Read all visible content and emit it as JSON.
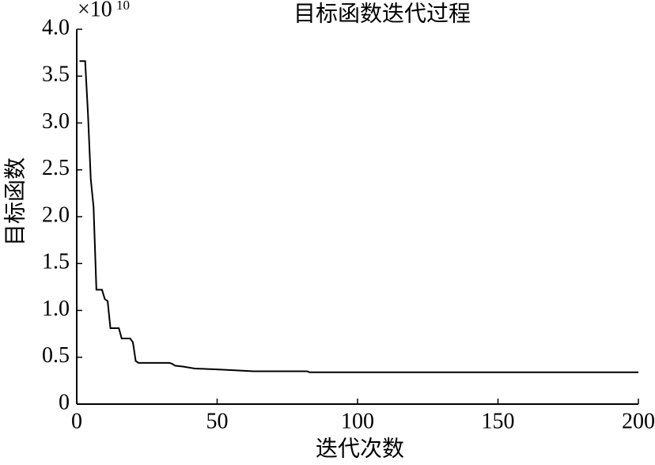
{
  "chart_data": {
    "type": "line",
    "title": "目标函数迭代过程",
    "x_label": "迭代次数",
    "y_label": "目标函数",
    "y_multiplier": "×10",
    "y_multiplier_exponent": "10",
    "x": [
      1,
      3,
      4,
      5,
      6,
      7,
      9,
      10,
      11,
      12,
      15,
      16,
      19,
      20,
      21,
      22,
      33,
      34,
      35,
      38,
      42,
      50,
      57,
      63,
      82,
      83,
      200
    ],
    "series": [
      {
        "color": "#000000",
        "values": [
          3.66,
          3.66,
          3.1,
          2.4,
          2.1,
          1.22,
          1.22,
          1.12,
          1.1,
          0.81,
          0.81,
          0.7,
          0.7,
          0.66,
          0.46,
          0.44,
          0.44,
          0.43,
          0.41,
          0.4,
          0.38,
          0.37,
          0.36,
          0.35,
          0.35,
          0.34,
          0.34
        ]
      }
    ],
    "xlim": [
      0,
      200
    ],
    "xticks": [
      0,
      50,
      100,
      150,
      200
    ],
    "ylim": [
      0,
      4
    ],
    "yticks": [
      0,
      0.5,
      {
        "value": 1,
        "label": "1.0"
      },
      1.5,
      {
        "value": 2,
        "label": "2.0"
      },
      2.5,
      {
        "value": 3,
        "label": "3.0"
      },
      3.5,
      {
        "value": 4,
        "label": "4.0"
      }
    ]
  }
}
